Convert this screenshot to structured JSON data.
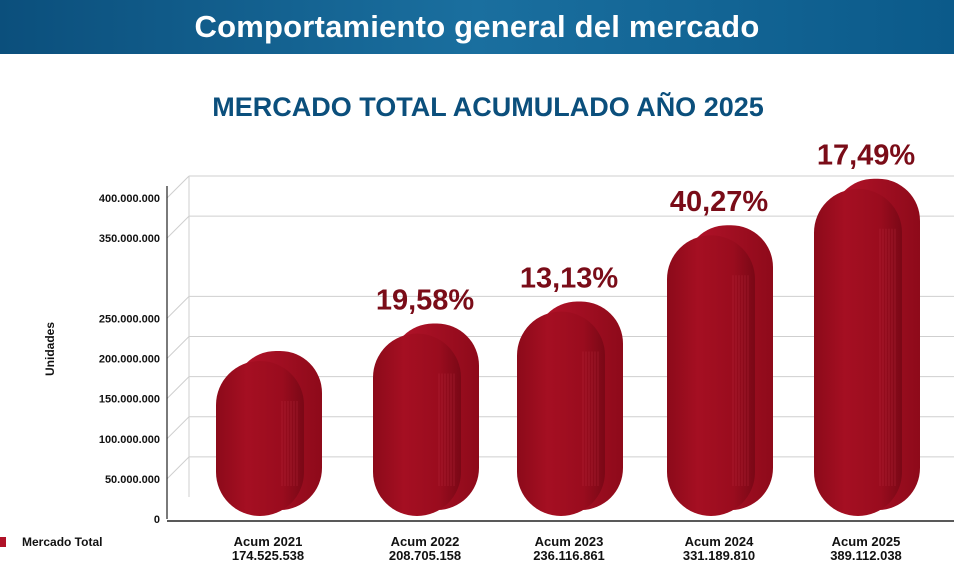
{
  "header": {
    "title": "Comportamiento general del mercado"
  },
  "chart_data": {
    "type": "bar",
    "title": "MERCADO TOTAL ACUMULADO AÑO 2025",
    "ylabel": "Unidades",
    "xlabel": "",
    "ylim": [
      0,
      400000000
    ],
    "y_ticks": [
      0,
      50000000,
      100000000,
      150000000,
      200000000,
      250000000,
      350000000,
      400000000
    ],
    "y_tick_labels": [
      "0",
      "50.000.000",
      "100.000.000",
      "150.000.000",
      "200.000.000",
      "250.000.000",
      "350.000.000",
      "400.000.000"
    ],
    "categories": [
      "Acum 2021",
      "Acum 2022",
      "Acum 2023",
      "Acum 2024",
      "Acum 2025"
    ],
    "value_labels": [
      "174.525.538",
      "208.705.158",
      "236.116.861",
      "331.189.810",
      "389.112.038"
    ],
    "series": [
      {
        "name": "Mercado Total",
        "values": [
          174525538,
          208705158,
          236116861,
          331189810,
          389112038
        ]
      }
    ],
    "growth_labels": [
      "",
      "19,58%",
      "13,13%",
      "40,27%",
      "17,49%"
    ],
    "legend": {
      "position": "bottom-left",
      "entries": [
        "Mercado Total"
      ]
    },
    "colors": {
      "bar": "#a50d20",
      "bar_dark": "#7e0816",
      "label": "#7a0c18",
      "grid": "#cfcfcf"
    }
  }
}
